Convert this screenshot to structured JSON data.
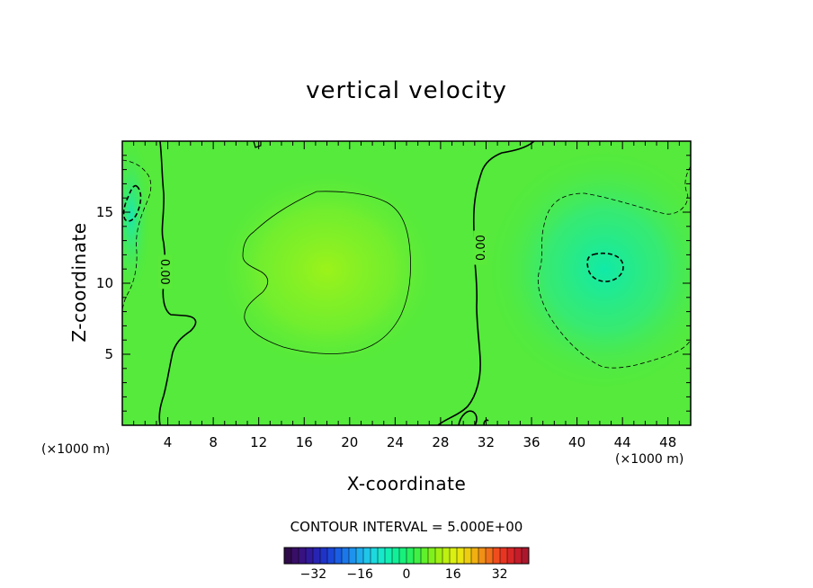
{
  "chart_data": {
    "type": "heatmap",
    "title": "vertical velocity",
    "xlabel": "X-coordinate",
    "ylabel": "Z-coordinate",
    "x_unit": "(×1000 m)",
    "z_unit": "(×1000 m)",
    "xlim": [
      0,
      50
    ],
    "ylim": [
      0,
      20
    ],
    "x_ticks": [
      4,
      8,
      12,
      16,
      20,
      24,
      28,
      32,
      36,
      40,
      44,
      48
    ],
    "y_ticks": [
      5,
      10,
      15
    ],
    "contour_interval_text": "CONTOUR INTERVAL = 5.000E+00",
    "contour_labels": [
      {
        "text": "0.00",
        "x": 3.8,
        "z": 10.8
      },
      {
        "text": "0.00",
        "x": 31.5,
        "z": 12.5
      }
    ],
    "colorbar": {
      "min": -42,
      "max": 42,
      "ticks": [
        -32,
        -16,
        0,
        16,
        32
      ],
      "colors": [
        "#2a0a3e",
        "#3c0f74",
        "#2d1ca8",
        "#1a3bd2",
        "#1a6ae8",
        "#1fa0f0",
        "#20d2e8",
        "#14eec0",
        "#10f08a",
        "#30f050",
        "#70f020",
        "#b0f010",
        "#e8f010",
        "#f0c010",
        "#f08018",
        "#f03c20",
        "#d01e28",
        "#a0142e"
      ]
    },
    "field_features": [
      {
        "kind": "positive",
        "x": 18,
        "z": 11,
        "value": 6
      },
      {
        "kind": "negative",
        "x": 42.5,
        "z": 11.3,
        "value": -6
      },
      {
        "kind": "negative",
        "x": 1,
        "z": 15.5,
        "value": -6
      }
    ]
  }
}
